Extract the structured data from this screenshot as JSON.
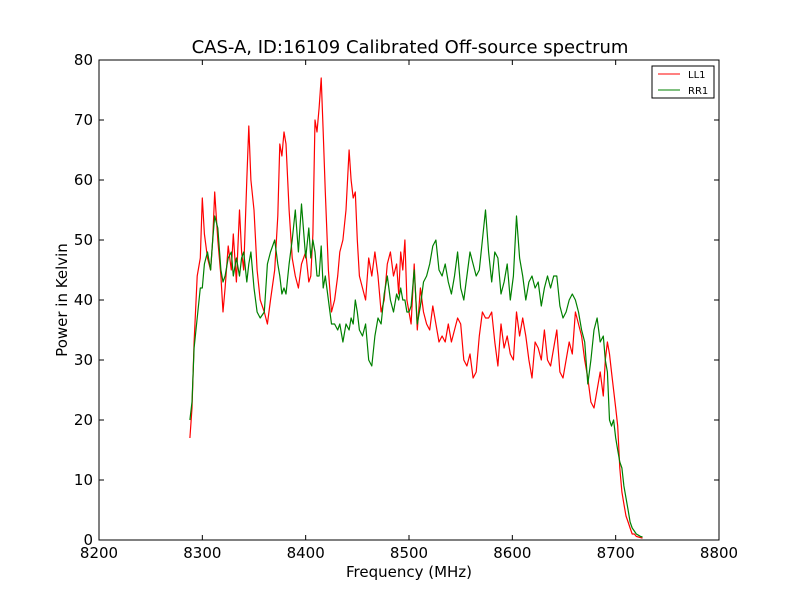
{
  "chart_data": {
    "type": "line",
    "title": "CAS-A, ID:16109 Calibrated Off-source spectrum",
    "xlabel": "Frequency (MHz)",
    "ylabel": "Power in Kelvin",
    "xlim": [
      8200,
      8800
    ],
    "ylim": [
      0,
      80
    ],
    "xticks": [
      8200,
      8300,
      8400,
      8500,
      8600,
      8700,
      8800
    ],
    "yticks": [
      0,
      10,
      20,
      30,
      40,
      50,
      60,
      70,
      80
    ],
    "grid": false,
    "legend_position": "top-right",
    "series": [
      {
        "name": "LL1",
        "color": "#ff0000",
        "x": [
          8288,
          8290,
          8292,
          8295,
          8298,
          8300,
          8302,
          8305,
          8308,
          8310,
          8312,
          8315,
          8318,
          8320,
          8322,
          8325,
          8328,
          8330,
          8333,
          8336,
          8338,
          8340,
          8343,
          8345,
          8347,
          8350,
          8353,
          8356,
          8360,
          8363,
          8366,
          8370,
          8373,
          8375,
          8377,
          8379,
          8381,
          8384,
          8387,
          8390,
          8393,
          8396,
          8400,
          8403,
          8405,
          8407,
          8409,
          8411,
          8413,
          8415,
          8417,
          8419,
          8422,
          8425,
          8428,
          8431,
          8433,
          8436,
          8439,
          8442,
          8444,
          8446,
          8448,
          8450,
          8452,
          8455,
          8458,
          8461,
          8464,
          8467,
          8470,
          8473,
          8476,
          8479,
          8482,
          8485,
          8488,
          8490,
          8492,
          8494,
          8496,
          8498,
          8500,
          8502,
          8505,
          8508,
          8511,
          8514,
          8517,
          8520,
          8523,
          8526,
          8529,
          8532,
          8535,
          8538,
          8541,
          8544,
          8547,
          8550,
          8553,
          8556,
          8559,
          8562,
          8565,
          8568,
          8571,
          8574,
          8577,
          8580,
          8583,
          8586,
          8589,
          8592,
          8595,
          8598,
          8601,
          8604,
          8607,
          8610,
          8613,
          8616,
          8619,
          8622,
          8625,
          8628,
          8631,
          8634,
          8637,
          8640,
          8643,
          8646,
          8649,
          8652,
          8655,
          8658,
          8661,
          8664,
          8667,
          8670,
          8673,
          8676,
          8679,
          8682,
          8685,
          8688,
          8690,
          8692,
          8694,
          8696,
          8698,
          8700,
          8702,
          8704,
          8706,
          8708,
          8710,
          8712,
          8714,
          8716,
          8718,
          8720,
          8722,
          8724,
          8726
        ],
        "y": [
          17,
          22,
          33,
          44,
          47,
          57,
          51,
          47,
          45,
          50,
          58,
          50,
          44,
          38,
          42,
          49,
          45,
          51,
          43,
          55,
          48,
          45,
          60,
          69,
          60,
          55,
          45,
          40,
          38,
          36,
          40,
          45,
          54,
          66,
          64,
          68,
          66,
          55,
          47,
          44,
          42,
          46,
          48,
          43,
          44,
          51,
          70,
          68,
          72,
          77,
          68,
          58,
          45,
          38,
          40,
          44,
          48,
          50,
          55,
          65,
          60,
          57,
          58,
          50,
          44,
          42,
          40,
          47,
          44,
          48,
          44,
          38,
          40,
          46,
          48,
          44,
          46,
          41,
          48,
          45,
          50,
          40,
          38,
          36,
          46,
          35,
          42,
          38,
          36,
          35,
          39,
          36,
          33,
          34,
          33,
          36,
          33,
          35,
          37,
          36,
          30,
          29,
          31,
          27,
          28,
          34,
          38,
          37,
          37,
          38,
          33,
          29,
          36,
          32,
          34,
          31,
          30,
          38,
          34,
          37,
          34,
          30,
          27,
          33,
          32,
          30,
          35,
          30,
          29,
          32,
          35,
          28,
          27,
          30,
          33,
          31,
          38,
          36,
          34,
          30,
          27,
          23,
          22,
          25,
          28,
          24,
          30,
          33,
          31,
          28,
          25,
          22,
          19,
          12,
          8,
          6,
          4,
          3,
          2,
          1,
          1,
          0.6,
          0.5,
          0.4,
          0.3
        ]
      },
      {
        "name": "RR1",
        "color": "#008000",
        "x": [
          8288,
          8290,
          8292,
          8295,
          8298,
          8300,
          8302,
          8305,
          8308,
          8310,
          8312,
          8315,
          8318,
          8320,
          8322,
          8325,
          8328,
          8330,
          8333,
          8336,
          8338,
          8340,
          8343,
          8345,
          8347,
          8350,
          8353,
          8356,
          8360,
          8363,
          8366,
          8370,
          8373,
          8375,
          8377,
          8379,
          8381,
          8384,
          8387,
          8390,
          8393,
          8396,
          8400,
          8403,
          8405,
          8407,
          8409,
          8411,
          8413,
          8415,
          8417,
          8419,
          8422,
          8425,
          8428,
          8431,
          8433,
          8436,
          8439,
          8442,
          8444,
          8446,
          8448,
          8450,
          8452,
          8455,
          8458,
          8461,
          8464,
          8467,
          8470,
          8473,
          8476,
          8479,
          8482,
          8485,
          8488,
          8490,
          8492,
          8494,
          8496,
          8498,
          8500,
          8502,
          8505,
          8508,
          8511,
          8514,
          8517,
          8520,
          8523,
          8526,
          8529,
          8532,
          8535,
          8538,
          8541,
          8544,
          8547,
          8550,
          8553,
          8556,
          8559,
          8562,
          8565,
          8568,
          8571,
          8574,
          8577,
          8580,
          8583,
          8586,
          8589,
          8592,
          8595,
          8598,
          8601,
          8604,
          8607,
          8610,
          8613,
          8616,
          8619,
          8622,
          8625,
          8628,
          8631,
          8634,
          8637,
          8640,
          8643,
          8646,
          8649,
          8652,
          8655,
          8658,
          8661,
          8664,
          8667,
          8670,
          8673,
          8676,
          8679,
          8682,
          8685,
          8688,
          8690,
          8692,
          8694,
          8696,
          8698,
          8700,
          8702,
          8704,
          8706,
          8708,
          8710,
          8712,
          8714,
          8716,
          8718,
          8720,
          8722,
          8724,
          8726
        ],
        "y": [
          20,
          23,
          32,
          37,
          42,
          42,
          46,
          48,
          45,
          50,
          54,
          52,
          45,
          43,
          44,
          47,
          48,
          44,
          47,
          44,
          47,
          48,
          43,
          46,
          48,
          42,
          38,
          37,
          38,
          46,
          48,
          50,
          46,
          44,
          41,
          42,
          41,
          46,
          50,
          55,
          48,
          56,
          47,
          52,
          47,
          50,
          48,
          44,
          44,
          49,
          42,
          44,
          40,
          36,
          36,
          35,
          36,
          33,
          36,
          35,
          37,
          36,
          40,
          38,
          35,
          34,
          36,
          30,
          29,
          34,
          37,
          36,
          41,
          44,
          40,
          38,
          41,
          40,
          42,
          40,
          40,
          38,
          38,
          39,
          45,
          36,
          39,
          43,
          44,
          46,
          49,
          50,
          45,
          44,
          46,
          43,
          41,
          44,
          48,
          42,
          40,
          44,
          48,
          46,
          44,
          45,
          50,
          55,
          48,
          43,
          48,
          47,
          41,
          43,
          46,
          40,
          44,
          54,
          47,
          44,
          40,
          43,
          44,
          42,
          43,
          39,
          42,
          44,
          42,
          44,
          44,
          39,
          37,
          38,
          40,
          41,
          40,
          38,
          35,
          33,
          26,
          30,
          35,
          37,
          33,
          34,
          30,
          28,
          20,
          19,
          20,
          17,
          15,
          13,
          12,
          9,
          7,
          5,
          3,
          2,
          1.5,
          1,
          0.8,
          0.6,
          0.5
        ]
      }
    ]
  }
}
